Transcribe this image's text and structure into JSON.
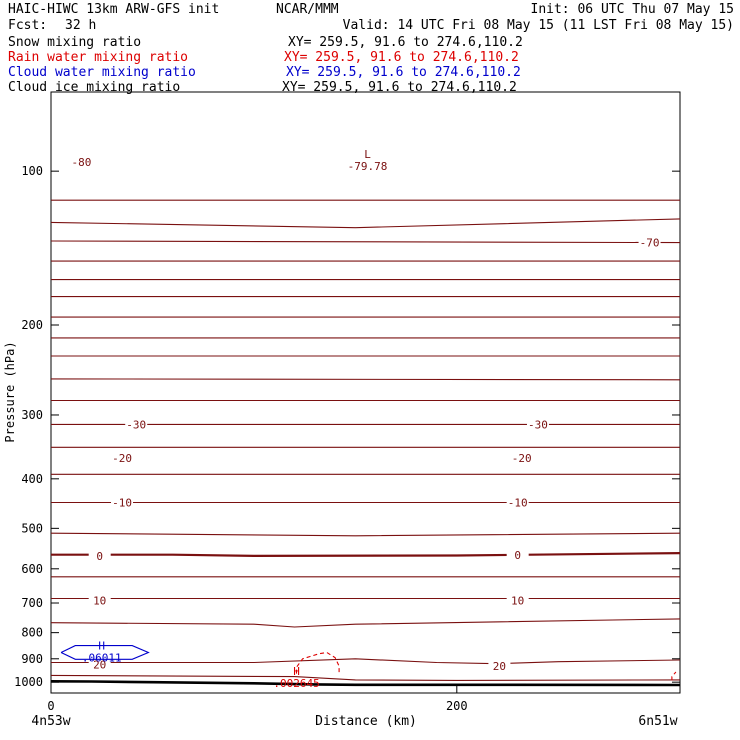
{
  "header": {
    "model_title": "HAIC-HIWC 13km ARW-GFS init",
    "org": "NCAR/MMM",
    "init": "Init: 06 UTC Thu 07 May 15",
    "fcst_label": "Fcst:",
    "fcst_value": "32 h",
    "valid": "Valid: 14 UTC Fri 08 May 15 (11 LST Fri 08 May 15)"
  },
  "fields": [
    {
      "name": "Snow mixing ratio",
      "xy": "XY= 259.5, 91.6 to 274.6,110.2",
      "color": "#000000"
    },
    {
      "name": "Rain water mixing ratio",
      "xy": "XY= 259.5, 91.6 to 274.6,110.2",
      "color": "#dd0000"
    },
    {
      "name": "Cloud water mixing ratio",
      "xy": "XY= 259.5, 91.6 to 274.6,110.2",
      "color": "#0000cc"
    },
    {
      "name": "Cloud ice mixing ratio",
      "xy": "XY= 259.5, 91.6 to 274.6,110.2",
      "color": "#000000"
    }
  ],
  "chart_data": {
    "type": "cross-section contour",
    "xlabel": "Distance (km)",
    "ylabel": "Pressure (hPa)",
    "xlim": [
      0,
      310
    ],
    "ylim": [
      1050,
      70
    ],
    "y_scale": "log",
    "x_ticks": [
      0,
      200
    ],
    "y_ticks": [
      100,
      200,
      300,
      400,
      500,
      600,
      700,
      800,
      900,
      1000
    ],
    "x_endpoint_labels": {
      "left": "4n53w",
      "right": "6n51w"
    },
    "isotherm_color": "#7a1010",
    "rain_color": "#dd0000",
    "cloud_water_color": "#0000cc",
    "terrain_color": "#000000",
    "isotherms": [
      {
        "points": [
          [
            0,
            114
          ],
          [
            310,
            114
          ]
        ]
      },
      {
        "points": [
          [
            0,
            126
          ],
          [
            150,
            129
          ],
          [
            310,
            124
          ]
        ]
      },
      {
        "points": [
          [
            0,
            137
          ],
          [
            310,
            138
          ]
        ]
      },
      {
        "points": [
          [
            0,
            150
          ],
          [
            310,
            150
          ]
        ]
      },
      {
        "points": [
          [
            0,
            163
          ],
          [
            310,
            163
          ]
        ]
      },
      {
        "points": [
          [
            0,
            176
          ],
          [
            310,
            176
          ]
        ]
      },
      {
        "points": [
          [
            0,
            193
          ],
          [
            310,
            193
          ]
        ]
      },
      {
        "points": [
          [
            0,
            212
          ],
          [
            310,
            212
          ]
        ]
      },
      {
        "points": [
          [
            0,
            230
          ],
          [
            310,
            230
          ]
        ]
      },
      {
        "points": [
          [
            0,
            255
          ],
          [
            310,
            256
          ]
        ]
      },
      {
        "points": [
          [
            0,
            281
          ],
          [
            310,
            281
          ]
        ]
      },
      {
        "points": [
          [
            0,
            313
          ],
          [
            310,
            313
          ]
        ]
      },
      {
        "points": [
          [
            0,
            347
          ],
          [
            310,
            347
          ]
        ]
      },
      {
        "points": [
          [
            0,
            392
          ],
          [
            310,
            392
          ]
        ]
      },
      {
        "points": [
          [
            0,
            445
          ],
          [
            310,
            445
          ]
        ]
      },
      {
        "points": [
          [
            0,
            511
          ],
          [
            150,
            517
          ],
          [
            310,
            511
          ]
        ]
      },
      {
        "points": [
          [
            0,
            563
          ],
          [
            60,
            563
          ],
          [
            100,
            566
          ],
          [
            200,
            565
          ],
          [
            310,
            559
          ]
        ],
        "bold": true
      },
      {
        "points": [
          [
            0,
            622
          ],
          [
            310,
            622
          ]
        ]
      },
      {
        "points": [
          [
            0,
            686
          ],
          [
            310,
            686
          ]
        ]
      },
      {
        "points": [
          [
            0,
            765
          ],
          [
            100,
            770
          ],
          [
            120,
            780
          ],
          [
            150,
            770
          ],
          [
            310,
            752
          ]
        ]
      },
      {
        "points": [
          [
            0,
            915
          ],
          [
            100,
            915
          ],
          [
            150,
            900
          ],
          [
            190,
            915
          ],
          [
            220,
            920
          ],
          [
            250,
            912
          ],
          [
            310,
            905
          ]
        ]
      },
      {
        "points": [
          [
            0,
            970
          ],
          [
            120,
            975
          ],
          [
            150,
            990
          ],
          [
            200,
            992
          ],
          [
            310,
            990
          ]
        ]
      }
    ],
    "isotherm_labels": [
      {
        "text": "-80",
        "x": 15,
        "y": 96
      },
      {
        "text": "-70",
        "x": 295,
        "y": 138
      },
      {
        "text": "-30",
        "x": 42,
        "y": 313
      },
      {
        "text": "-30",
        "x": 240,
        "y": 313
      },
      {
        "text": "-20",
        "x": 35,
        "y": 364
      },
      {
        "text": "-20",
        "x": 232,
        "y": 364
      },
      {
        "text": "-10",
        "x": 35,
        "y": 445
      },
      {
        "text": "-10",
        "x": 230,
        "y": 445
      },
      {
        "text": "0",
        "x": 24,
        "y": 566
      },
      {
        "text": "0",
        "x": 230,
        "y": 564
      },
      {
        "text": "10",
        "x": 24,
        "y": 692
      },
      {
        "text": "10",
        "x": 230,
        "y": 692
      },
      {
        "text": "20",
        "x": 24,
        "y": 923
      },
      {
        "text": "20",
        "x": 221,
        "y": 930
      }
    ],
    "low_marker": {
      "letter": "L",
      "value": "-79.78",
      "x": 156,
      "temp": -79.78,
      "y": 95
    },
    "rain_max": {
      "letter": "H",
      "value": ".002645",
      "x": 121,
      "y": 978
    },
    "rain_contours": [
      {
        "points": [
          [
            121,
            962
          ],
          [
            121,
            935
          ],
          [
            124,
            900
          ],
          [
            132,
            880
          ],
          [
            136,
            875
          ],
          [
            140,
            895
          ],
          [
            142,
            930
          ],
          [
            142,
            962
          ]
        ]
      },
      {
        "points": [
          [
            306,
            992
          ],
          [
            306,
            975
          ],
          [
            308,
            955
          ]
        ]
      }
    ],
    "cloud_water_max": {
      "letter": "H",
      "value": ".06011",
      "x": 25,
      "y": 870
    },
    "cloud_water_contours": [
      {
        "points": [
          [
            5,
            875
          ],
          [
            12,
            848
          ],
          [
            40,
            848
          ],
          [
            48,
            875
          ],
          [
            40,
            902
          ],
          [
            12,
            902
          ],
          [
            5,
            875
          ]
        ]
      }
    ],
    "terrain": {
      "points": [
        [
          0,
          996
        ],
        [
          20,
          997
        ],
        [
          50,
          1000
        ],
        [
          100,
          1005
        ],
        [
          130,
          1010
        ],
        [
          150,
          1012
        ],
        [
          200,
          1012
        ],
        [
          310,
          1013
        ]
      ]
    }
  }
}
